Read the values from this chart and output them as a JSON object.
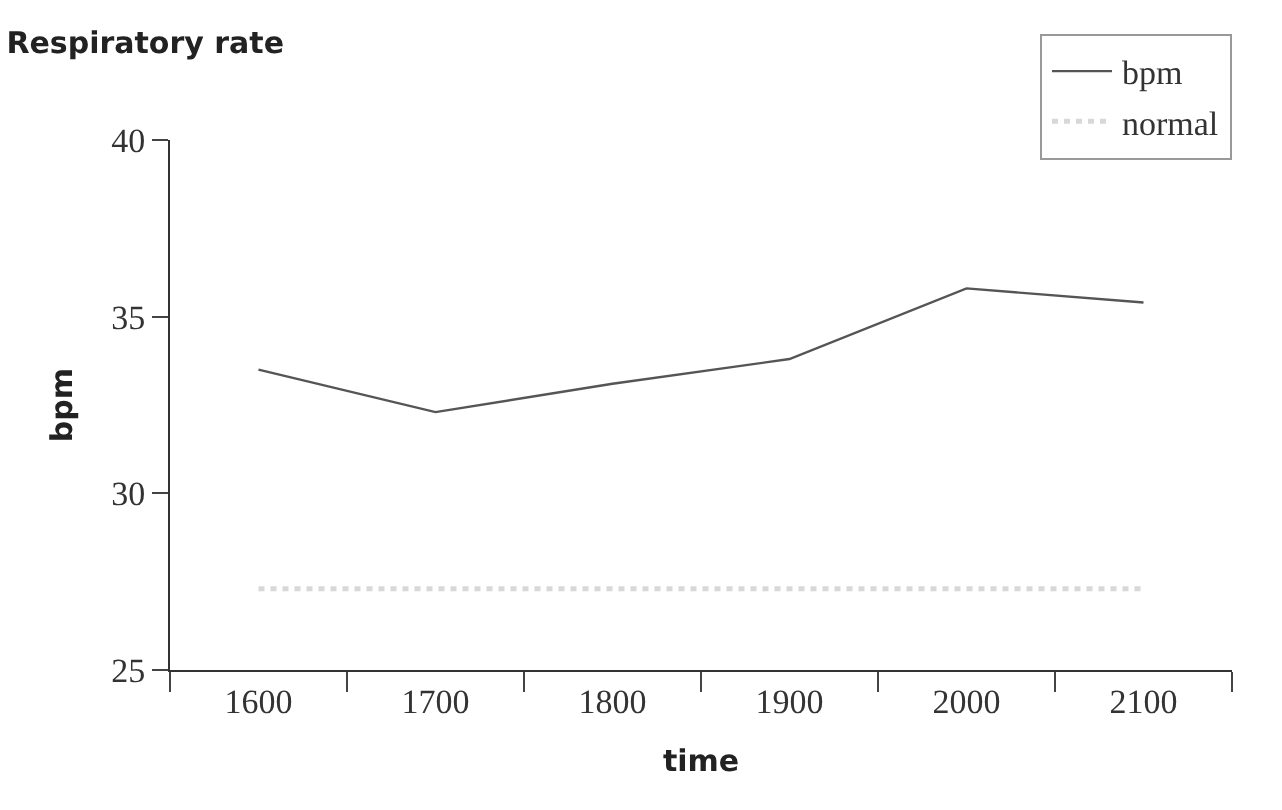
{
  "chart_data": {
    "type": "line",
    "title": "Respiratory rate",
    "xlabel": "time",
    "ylabel": "bpm",
    "categories": [
      "1600",
      "1700",
      "1800",
      "1900",
      "2000",
      "2100"
    ],
    "series": [
      {
        "name": "bpm",
        "color": "#555555",
        "values": [
          33.5,
          32.3,
          33.1,
          33.8,
          35.8,
          35.4
        ],
        "line_style": "solid"
      },
      {
        "name": "normal",
        "color": "#d8d8d8",
        "values": [
          27.3,
          27.3,
          27.3,
          27.3,
          27.3,
          27.3
        ],
        "line_style": "dotted"
      }
    ],
    "ylim": [
      25,
      40
    ],
    "yticks": [
      25,
      30,
      35,
      40
    ],
    "legend": "top right",
    "marker": "none"
  }
}
